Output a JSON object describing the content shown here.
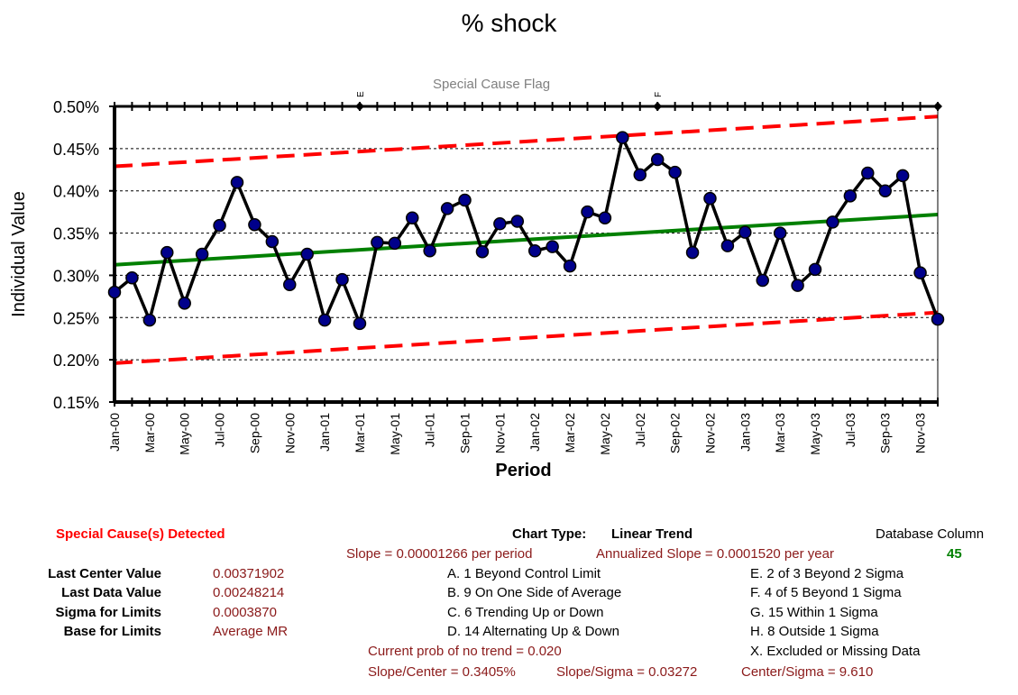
{
  "title": "% shock",
  "special_flag_title": "Special Cause Flag",
  "xlabel": "Period",
  "ylabel": "Individual Value",
  "colors": {
    "series": "#000000",
    "marker": "#00008b",
    "trend": "#008000",
    "limits": "#ff0000"
  },
  "chart_data": {
    "type": "line",
    "title": "% shock",
    "xlabel": "Period",
    "ylabel": "Individual Value",
    "ylim": [
      0.0015,
      0.005
    ],
    "y_ticks": [
      "0.15%",
      "0.20%",
      "0.25%",
      "0.30%",
      "0.35%",
      "0.40%",
      "0.45%",
      "0.50%"
    ],
    "x_tick_labels": [
      "Jan-00",
      "Mar-00",
      "May-00",
      "Jul-00",
      "Sep-00",
      "Nov-00",
      "Jan-01",
      "Mar-01",
      "May-01",
      "Jul-01",
      "Sep-01",
      "Nov-01",
      "Jan-02",
      "Mar-02",
      "May-02",
      "Jul-02",
      "Sep-02",
      "Nov-02",
      "Jan-03",
      "Mar-03",
      "May-03",
      "Jul-03",
      "Sep-03",
      "Nov-03"
    ],
    "x": [
      "Jan-00",
      "Feb-00",
      "Mar-00",
      "Apr-00",
      "May-00",
      "Jun-00",
      "Jul-00",
      "Aug-00",
      "Sep-00",
      "Oct-00",
      "Nov-00",
      "Dec-00",
      "Jan-01",
      "Feb-01",
      "Mar-01",
      "Apr-01",
      "May-01",
      "Jun-01",
      "Jul-01",
      "Aug-01",
      "Sep-01",
      "Oct-01",
      "Nov-01",
      "Dec-01",
      "Jan-02",
      "Feb-02",
      "Mar-02",
      "Apr-02",
      "May-02",
      "Jun-02",
      "Jul-02",
      "Aug-02",
      "Sep-02",
      "Oct-02",
      "Nov-02",
      "Dec-02",
      "Jan-03",
      "Feb-03",
      "Mar-03",
      "Apr-03",
      "May-03",
      "Jun-03",
      "Jul-03",
      "Aug-03",
      "Sep-03",
      "Oct-03",
      "Nov-03",
      "Dec-03"
    ],
    "values": [
      0.0028,
      0.00297,
      0.00247,
      0.00327,
      0.00267,
      0.00325,
      0.00359,
      0.0041,
      0.0036,
      0.0034,
      0.00289,
      0.00325,
      0.00247,
      0.00295,
      0.00243,
      0.00339,
      0.00338,
      0.00368,
      0.00329,
      0.00379,
      0.00389,
      0.00328,
      0.00361,
      0.00364,
      0.00329,
      0.00334,
      0.00311,
      0.00375,
      0.00368,
      0.00463,
      0.00419,
      0.00437,
      0.00422,
      0.00327,
      0.00391,
      0.00335,
      0.00351,
      0.00294,
      0.0035,
      0.00288,
      0.00307,
      0.00363,
      0.00394,
      0.00421,
      0.004,
      0.00418,
      0.00303,
      0.00248
    ],
    "center_line": {
      "start": 0.003125,
      "end": 0.003719
    },
    "upper_limit": {
      "start": 0.00429,
      "end": 0.00488
    },
    "lower_limit": {
      "start": 0.00196,
      "end": 0.00256
    },
    "special_cause_flags": [
      {
        "x": "Mar-01",
        "label": "E"
      },
      {
        "x": "Aug-02",
        "label": "F"
      }
    ],
    "grid": true
  },
  "summary": {
    "special_cause": "Special Cause(s) Detected",
    "chart_type_label": "Chart Type:",
    "chart_type_value": "Linear Trend",
    "database_column_label": "Database Column",
    "database_column_value": "45",
    "slope": "Slope = 0.00001266 per period",
    "annualized_slope": "Annualized Slope = 0.0001520 per year",
    "stats": [
      {
        "label": "Last Center Value",
        "value": "0.00371902"
      },
      {
        "label": "Last Data Value",
        "value": "0.00248214"
      },
      {
        "label": "Sigma for Limits",
        "value": "0.0003870"
      },
      {
        "label": "Base for Limits",
        "value": "Average MR"
      }
    ],
    "rules_left": [
      "A.  1 Beyond Control Limit",
      "B.  9 On One Side of Average",
      "C.  6 Trending Up or Down",
      "D.  14 Alternating  Up & Down"
    ],
    "rules_right": [
      "E.   2 of 3 Beyond 2 Sigma",
      "F.   4 of 5 Beyond 1 Sigma",
      "G.   15 Within 1 Sigma",
      "H.   8 Outside 1 Sigma",
      "X.   Excluded or Missing Data"
    ],
    "prob_no_trend": "Current prob of no trend = 0.020",
    "slope_center": "Slope/Center = 0.3405%",
    "slope_sigma": "Slope/Sigma = 0.03272",
    "center_sigma": "Center/Sigma = 9.610"
  }
}
